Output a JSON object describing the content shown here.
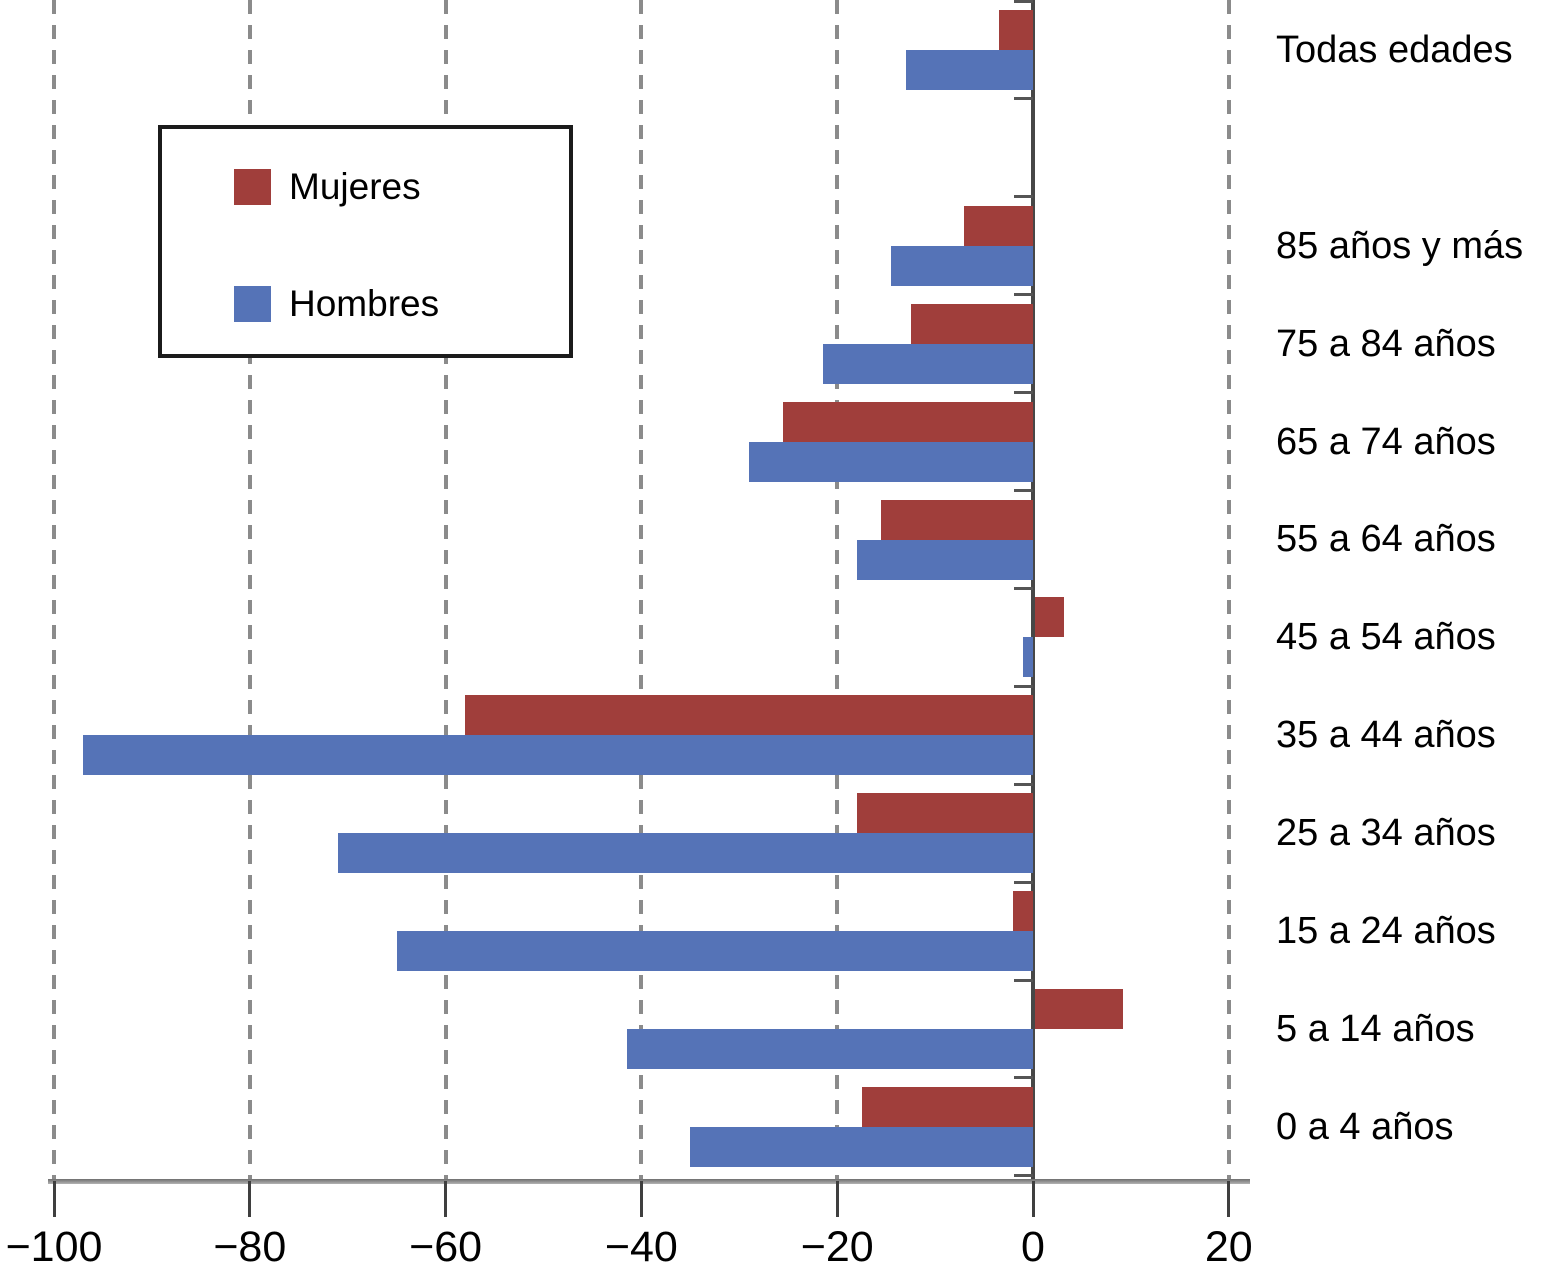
{
  "chart_data": {
    "type": "bar",
    "orientation": "horizontal",
    "title": "",
    "xlabel": "",
    "ylabel": "",
    "xlim": [
      -100,
      20
    ],
    "x_tick_values": [
      -100,
      -80,
      -60,
      -40,
      -20,
      0,
      20
    ],
    "x_tick_labels": [
      "−100",
      "−80",
      "−60",
      "−40",
      "−20",
      "0",
      "20"
    ],
    "grid": "vertical dashed gridlines at every x tick; solid vertical axis line at 0; bottom axis line with outward ticks",
    "legend_position": "top-left",
    "legend": {
      "entries": [
        {
          "label": "Mujeres",
          "color": "#A03E3B"
        },
        {
          "label": "Hombres",
          "color": "#5573B7"
        }
      ]
    },
    "categories": [
      "Todas edades",
      "85 años y más",
      "75 a 84 años",
      "65 a 74 años",
      "55 a 64 años",
      "45 a 54 años",
      "35 a 44 años",
      "25 a 34 años",
      "15 a 24 años",
      "5 a 14 años",
      "0 a 4 años"
    ],
    "series": [
      {
        "name": "Mujeres",
        "color": "#A03E3B",
        "values": [
          -3.5,
          -7,
          -12.5,
          -25.5,
          -15.5,
          3,
          -58,
          -18,
          -2,
          9,
          -17.5
        ]
      },
      {
        "name": "Hombres",
        "color": "#5573B7",
        "values": [
          -13,
          -14.5,
          -21.5,
          -29,
          -18,
          -1,
          -97,
          -71,
          -65,
          -41.5,
          -35
        ]
      }
    ],
    "layout": {
      "blank_row_after_category_index": 0,
      "category_labels_side": "right",
      "bar_order_per_category": [
        "Mujeres top",
        "Hombres bottom"
      ]
    }
  }
}
